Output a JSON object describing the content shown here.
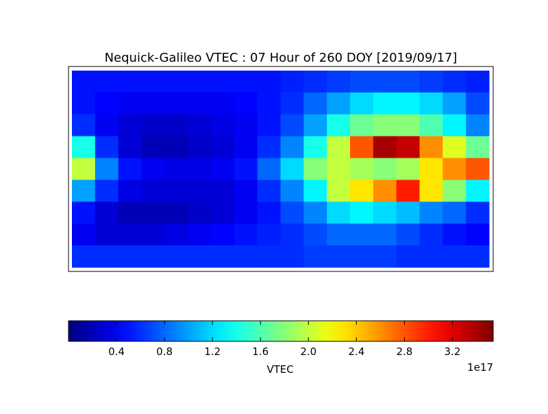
{
  "chart_data": {
    "type": "heatmap",
    "title": "Nequick-Galileo VTEC : 07 Hour of 260 DOY [2019/09/17]",
    "xlim": [
      -180,
      180
    ],
    "ylim": [
      90,
      -90
    ],
    "z": [
      [
        0.5,
        0.5,
        0.5,
        0.5,
        0.5,
        0.5,
        0.5,
        0.5,
        0.5,
        0.55,
        0.6,
        0.65,
        0.7,
        0.7,
        0.7,
        0.65,
        0.6,
        0.55
      ],
      [
        0.5,
        0.45,
        0.4,
        0.4,
        0.4,
        0.4,
        0.4,
        0.45,
        0.5,
        0.6,
        0.8,
        1.0,
        1.2,
        1.3,
        1.3,
        1.2,
        1.0,
        0.7
      ],
      [
        0.6,
        0.4,
        0.3,
        0.25,
        0.25,
        0.3,
        0.35,
        0.4,
        0.5,
        0.7,
        1.0,
        1.4,
        1.7,
        1.8,
        1.8,
        1.6,
        1.3,
        0.9
      ],
      [
        1.4,
        0.6,
        0.3,
        0.2,
        0.2,
        0.25,
        0.3,
        0.4,
        0.6,
        0.9,
        1.4,
        2.0,
        2.8,
        3.4,
        3.3,
        2.6,
        2.1,
        1.7
      ],
      [
        2.0,
        0.9,
        0.5,
        0.4,
        0.35,
        0.35,
        0.4,
        0.5,
        0.8,
        1.2,
        1.8,
        2.0,
        1.9,
        1.8,
        1.9,
        2.3,
        2.6,
        2.8
      ],
      [
        1.0,
        0.6,
        0.35,
        0.3,
        0.3,
        0.3,
        0.3,
        0.4,
        0.6,
        0.9,
        1.3,
        2.0,
        2.3,
        2.6,
        3.0,
        2.3,
        1.8,
        1.3
      ],
      [
        0.5,
        0.3,
        0.2,
        0.2,
        0.2,
        0.25,
        0.3,
        0.4,
        0.5,
        0.7,
        0.9,
        1.2,
        1.3,
        1.2,
        1.1,
        0.9,
        0.8,
        0.6
      ],
      [
        0.4,
        0.3,
        0.3,
        0.3,
        0.35,
        0.4,
        0.45,
        0.5,
        0.55,
        0.6,
        0.7,
        0.8,
        0.8,
        0.8,
        0.7,
        0.6,
        0.5,
        0.45
      ],
      [
        0.6,
        0.6,
        0.6,
        0.6,
        0.6,
        0.6,
        0.6,
        0.6,
        0.6,
        0.6,
        0.65,
        0.65,
        0.65,
        0.65,
        0.6,
        0.6,
        0.6,
        0.6
      ]
    ],
    "colorbar": {
      "label": "VTEC",
      "offset_label": "1e17",
      "lim": [
        0,
        3.54
      ],
      "ticks": [
        0.4,
        0.8,
        1.2,
        1.6,
        {
          "value": 2,
          "label": "2.0"
        },
        2.4,
        2.8,
        3.2
      ]
    }
  }
}
